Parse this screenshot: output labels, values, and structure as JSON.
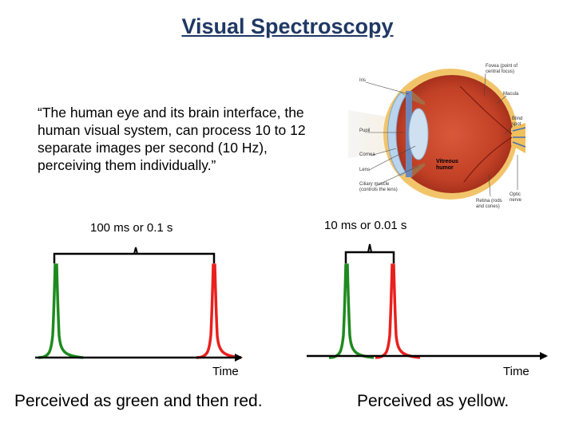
{
  "title": "Visual Spectroscopy",
  "quote": "“The human eye and its brain interface, the human visual system, can process 10 to 12 separate images per second (10 Hz), perceiving them individually.”",
  "eye": {
    "labels": {
      "iris": "Iris",
      "pupil": "Pupil",
      "cornea": "Cornea",
      "lens": "Lens",
      "ciliary": "Ciliary muscle",
      "ciliary2": "(controls the lens)",
      "fovea": "Fovea (point of",
      "fovea2": "central focus)",
      "macula": "Macula",
      "blind": "Blind",
      "blind2": "spot",
      "vitreous": "Vitreous",
      "vitreous2": "humor",
      "retina": "Retina (rods",
      "retina2": "and cones)",
      "optic": "Optic",
      "optic2": "nerve"
    }
  },
  "left_plot": {
    "interval_label": "100 ms or 0.1 s",
    "axis_label": "Time",
    "caption": "Perceived as green and then red.",
    "pulses": [
      {
        "color": "green",
        "hex": "#1e8a1e"
      },
      {
        "color": "red",
        "hex": "#e8201e"
      }
    ]
  },
  "right_plot": {
    "interval_label": "10 ms or 0.01 s",
    "axis_label": "Time",
    "caption": "Perceived as yellow.",
    "pulses": [
      {
        "color": "green",
        "hex": "#1e8a1e"
      },
      {
        "color": "red",
        "hex": "#e8201e"
      }
    ]
  }
}
